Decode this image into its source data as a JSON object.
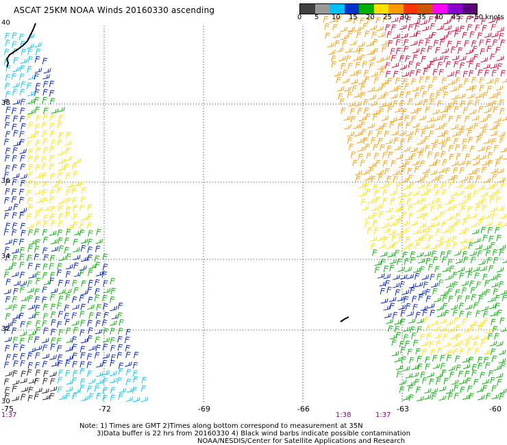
{
  "title": "ASCAT 25KM NOAA Winds 20160330 ascending",
  "legend": {
    "colors": [
      "#404040",
      "#9a9a9a",
      "#00c0ff",
      "#0033cc",
      "#00b000",
      "#ffe000",
      "#ff9900",
      "#ff3300",
      "#cc5500",
      "#ff00ff",
      "#8800cc",
      "#5a007a"
    ],
    "labels": [
      "0",
      "5",
      "10",
      "15",
      "20",
      "25",
      "30",
      "35",
      "40",
      "45",
      ">50 knots"
    ]
  },
  "latitudes": [
    "40",
    "38",
    "36",
    "34",
    "32",
    "30"
  ],
  "longitudes": [
    "-75",
    "-72",
    "-69",
    "-66",
    "-63",
    "-60"
  ],
  "times": [
    "1:37",
    "1:38",
    "1:37"
  ],
  "notes": [
    "Note: 1) Times are GMT 2)Times along bottom correspond to measurement at 35N",
    "3)Data buffer is 22 hrs from 20160330 4) Black wind barbs indicate possible contamination",
    "NOAA/NESDIS/Center for Satellite Applications and Research"
  ]
}
